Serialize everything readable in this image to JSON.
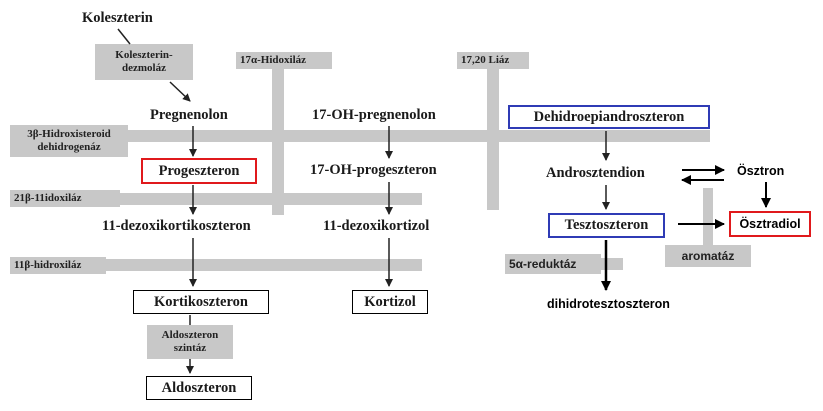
{
  "compounds": {
    "koleszterin": "Koleszterin",
    "pregnenolon": "Pregnenolon",
    "oh_pregnenolon": "17-OH-pregnenolon",
    "dhea": "Dehidroepiandroszteron",
    "progeszteron": "Progeszteron",
    "oh_progeszteron": "17-OH-progeszteron",
    "androsztendion": "Androsztendion",
    "osztron": "Ösztron",
    "dezoxikortikoszteron": "11-dezoxikortikoszteron",
    "dezoxikortizol": "11-dezoxikortizol",
    "tesztoszteron": "Tesztoszteron",
    "osztradiol": "Ösztradiol",
    "kortikoszteron": "Kortikoszteron",
    "kortizol": "Kortizol",
    "dihidrotesztoszteron": "dihidrotesztoszteron",
    "aldoszteron": "Aldoszteron"
  },
  "enzymes": {
    "dezmolaz": "Koleszterin-\ndezmoláz",
    "hidroxilaz17": "17α-Hidoxiláz",
    "liaz": "17,20 Liáz",
    "hsd3b": "3β-Hidroxisteroid\ndehidrogenáz",
    "hidroxilaz21": "21β-11idoxiláz",
    "hidroxilaz11": "11β-hidroxiláz",
    "reduktaz": "5α-reduktáz",
    "aromataz": "aromatáz",
    "aldo_szintaz": "Aldoszteron\nszintáz"
  },
  "colors": {
    "highlight_red": "#e0191c",
    "highlight_blue": "#2f3bb5",
    "enzyme_bar": "#c8c8c8"
  }
}
